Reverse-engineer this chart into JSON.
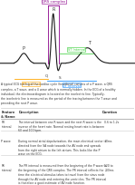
{
  "title": "A Typical ECG Tracing of The Cardiac Cycle",
  "ecg_color": "#1a1a1a",
  "background_color": "#ffffff",
  "bracket_colors": {
    "QRS": "#8B008B",
    "PR": "#FFA500",
    "ST": "#32CD32",
    "QT": "#1E90FF"
  },
  "table_headers": [
    "Feature",
    "Description",
    "Duration"
  ],
  "table_rows": [
    [
      "RR interval",
      "The interval between one R wave and the next R wave is the inverse of the heart rate. Normal resting heart rate is between 60 and 100 bpm.",
      "0.6 to 1.2s"
    ],
    [
      "P wave",
      "During normal atrial depolarization, the main electrical vector is directed from the SA node towards the AV node and spreads from the right atrium to the left atrium. This looks like the P wave on the ECG.",
      "80ms"
    ],
    [
      "PR interval",
      "The PR interval is measured from the beginning of the P wave to the beginning of the QRS complex. The PR interval reflects the time the electrical stimulus takes to travel from the sinus node through the AV node and entering the ventricles. The PR interval is therefore a good estimate of AV node function.",
      "120 to 200ms"
    ]
  ]
}
